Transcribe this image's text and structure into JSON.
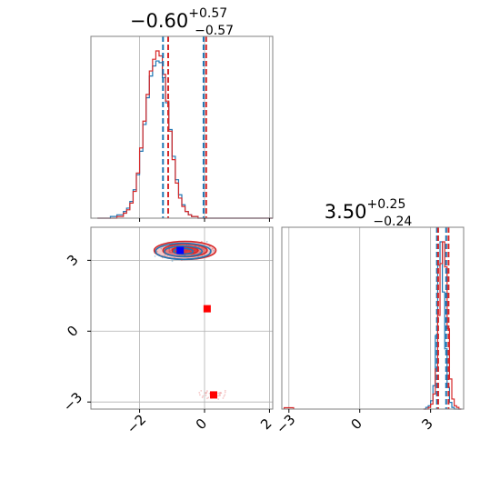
{
  "chart_data": {
    "type": "corner",
    "colors": {
      "series_a": "#1f77b4",
      "series_b": "#d62728",
      "marker_blue": "#0000ff",
      "marker_red": "#ff0000",
      "grid": "#b0b0b0",
      "axes": "#808080"
    },
    "titles": {
      "p1": {
        "main": "−0.60",
        "sup": "+0.57",
        "sub": "−0.57"
      },
      "p2": {
        "main": "3.50",
        "sup": "+0.25",
        "sub": "−0.24"
      }
    },
    "axes": {
      "p1": {
        "range": [
          -3.5,
          2.1
        ],
        "ticks": [
          -2,
          0,
          2
        ],
        "tick_labels": [
          "−2",
          "0",
          "2"
        ]
      },
      "p2": {
        "range": [
          -3.3,
          4.4
        ],
        "ticks": [
          -3,
          0,
          3
        ],
        "tick_labels": [
          "−3",
          "0",
          "3"
        ]
      }
    },
    "hist_p1": {
      "bin_start": -3.3,
      "bin_width": 0.1,
      "series_a": [
        0,
        0,
        0,
        0,
        1,
        1,
        2,
        2,
        4,
        6,
        10,
        17,
        26,
        40,
        56,
        72,
        85,
        91,
        94,
        93,
        84,
        69,
        53,
        37,
        23,
        14,
        8,
        4,
        2,
        1,
        1,
        0,
        0,
        0,
        0,
        0,
        0,
        0,
        0,
        0,
        0,
        0,
        0,
        0,
        0,
        0,
        0,
        0,
        0,
        0,
        0,
        0,
        0,
        0
      ],
      "series_b": [
        0,
        0,
        0,
        0,
        0,
        0,
        1,
        1,
        3,
        5,
        9,
        16,
        27,
        42,
        58,
        74,
        88,
        95,
        100,
        97,
        86,
        70,
        52,
        35,
        21,
        12,
        7,
        4,
        2,
        1,
        1,
        0,
        0,
        0,
        0,
        0,
        0,
        0,
        0,
        0,
        0,
        0,
        0,
        0,
        0,
        0,
        0,
        0,
        0,
        0,
        0,
        0,
        0,
        0
      ]
    },
    "quantiles_p1": {
      "series_a": [
        -1.28,
        -0.03
      ],
      "series_b": [
        -1.12,
        0.05
      ]
    },
    "hist_p2": {
      "bin_start": 2.7,
      "bin_width": 0.1,
      "series_a": [
        0,
        1,
        2,
        5,
        14,
        44,
        86,
        100,
        70,
        36,
        13,
        4,
        1,
        0,
        0,
        0
      ],
      "series_b": [
        0,
        0,
        1,
        3,
        9,
        24,
        56,
        87,
        100,
        85,
        48,
        18,
        6,
        2,
        1,
        0
      ]
    },
    "hist_p2_tail": {
      "x": [
        -3.2,
        -3.1,
        -3.0,
        -2.9
      ],
      "series_b": [
        1,
        1,
        1,
        1
      ]
    },
    "quantiles_p2": {
      "series_a": [
        3.27,
        3.66
      ],
      "series_b": [
        3.32,
        3.76
      ]
    },
    "contours": {
      "center": [
        -0.6,
        3.42
      ],
      "series_a": [
        [
          0.85,
          0.34
        ],
        [
          0.58,
          0.22
        ],
        [
          0.3,
          0.12
        ]
      ],
      "series_b": [
        [
          0.95,
          0.38
        ],
        [
          0.68,
          0.27
        ],
        [
          0.4,
          0.15
        ]
      ]
    },
    "markers": [
      {
        "x": -0.75,
        "y": 3.42,
        "color": "#0000ff"
      },
      {
        "x": 0.08,
        "y": 0.95,
        "color": "#ff0000"
      },
      {
        "x": 0.28,
        "y": -2.7,
        "color": "#ff0000"
      }
    ]
  }
}
